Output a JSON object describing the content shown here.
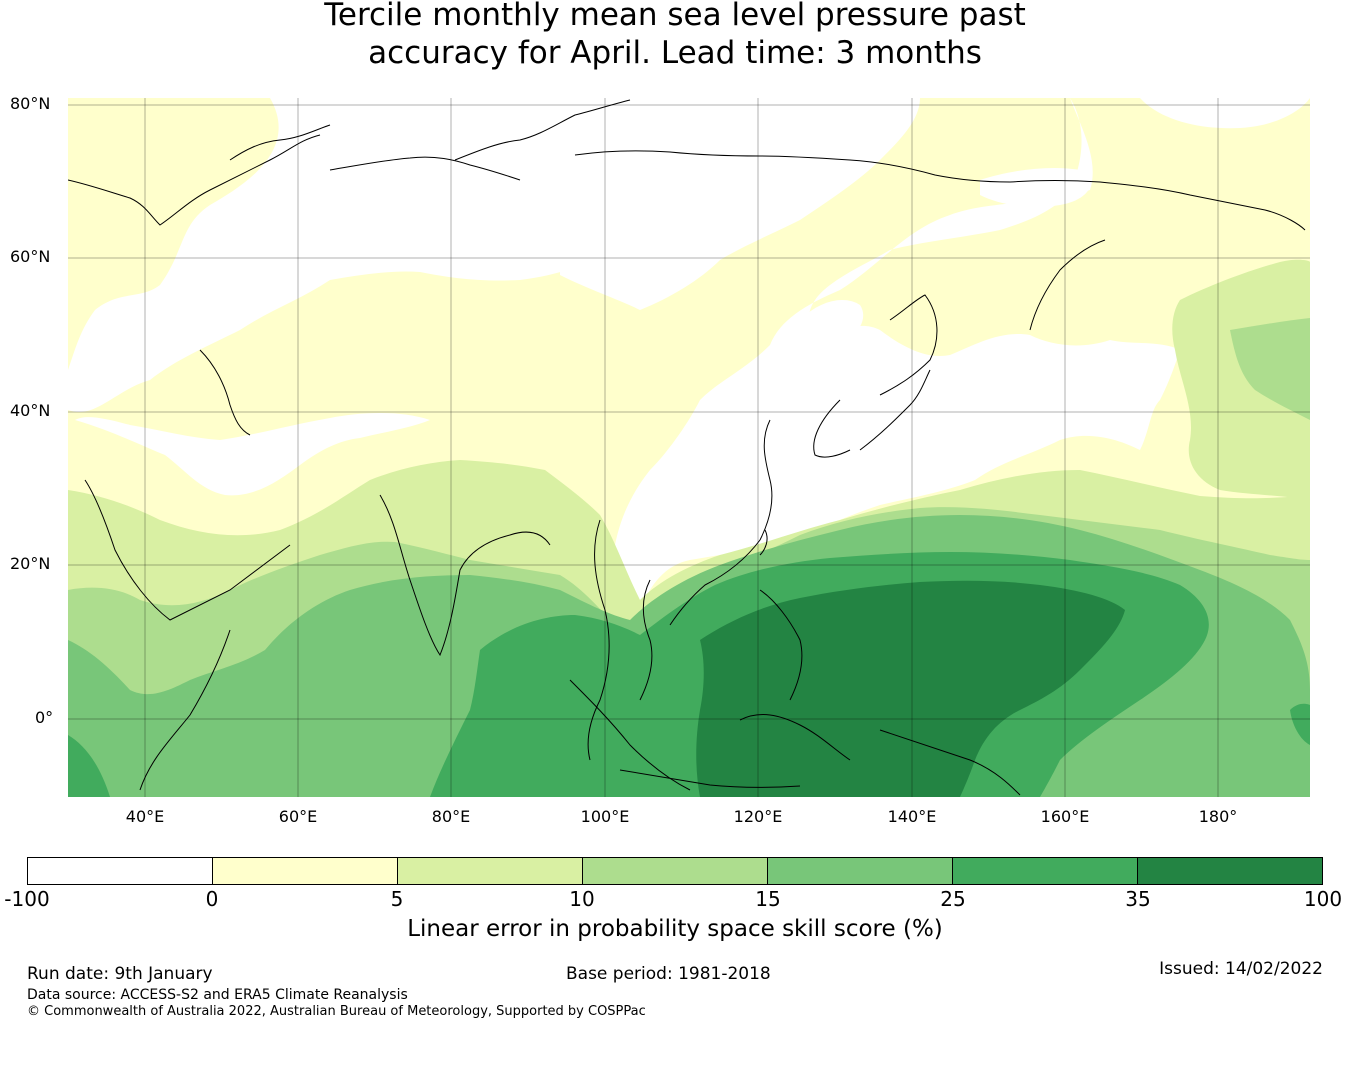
{
  "title": {
    "line1": "Tercile monthly mean sea level pressure past",
    "line2": "accuracy for April. Lead time: 3 months"
  },
  "map": {
    "lat_labels": [
      "80°N",
      "60°N",
      "40°N",
      "20°N",
      "0°"
    ],
    "lon_labels": [
      "40°E",
      "60°E",
      "80°E",
      "100°E",
      "120°E",
      "140°E",
      "160°E",
      "180°"
    ],
    "lat_values": [
      80,
      60,
      40,
      20,
      0
    ],
    "lon_values": [
      40,
      60,
      80,
      100,
      120,
      140,
      160,
      180
    ],
    "extent": {
      "lon_min": 30,
      "lon_max": 192,
      "lat_min": -10,
      "lat_max": 81
    }
  },
  "legend": {
    "bins": [
      {
        "from": -100,
        "to": 0,
        "color": "#ffffff"
      },
      {
        "from": 0,
        "to": 5,
        "color": "#ffffcc"
      },
      {
        "from": 5,
        "to": 10,
        "color": "#d9f0a3"
      },
      {
        "from": 10,
        "to": 15,
        "color": "#addd8e"
      },
      {
        "from": 15,
        "to": 25,
        "color": "#78c679"
      },
      {
        "from": 25,
        "to": 35,
        "color": "#41ab5d"
      },
      {
        "from": 35,
        "to": 100,
        "color": "#238443"
      }
    ],
    "tick_labels": [
      "-100",
      "0",
      "5",
      "10",
      "15",
      "25",
      "35",
      "100"
    ],
    "label": "Linear error in probability space skill score (%)"
  },
  "footer": {
    "run_date": "Run date: 9th January",
    "base_period": "Base period: 1981-2018",
    "issued": "Issued: 14/02/2022",
    "data_source": "Data source: ACCESS-S2 and ERA5 Climate Reanalysis",
    "copyright": "© Commonwealth of Australia 2022, Australian Bureau of Meteorology, Supported by COSPPac"
  }
}
